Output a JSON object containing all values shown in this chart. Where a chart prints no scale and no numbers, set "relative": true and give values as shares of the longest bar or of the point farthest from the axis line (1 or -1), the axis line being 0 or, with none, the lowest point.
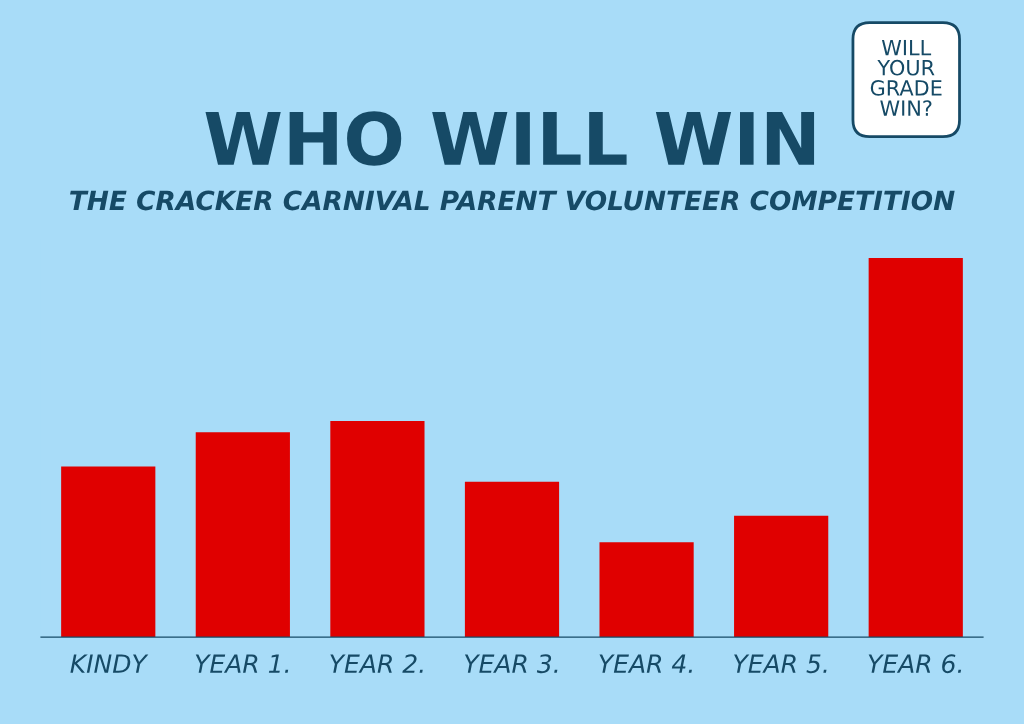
{
  "chart_data": {
    "type": "bar",
    "title": "WHO WILL WIN",
    "subtitle": "THE CRACKER CARNIVAL PARENT VOLUNTEER COMPETITION",
    "annotations": [
      "WILL\nYOUR\nGRADE\nWIN?"
    ],
    "categories": [
      "KINDY",
      "YEAR 1.",
      "YEAR 2.",
      "YEAR 3.",
      "YEAR 4.",
      "YEAR 5.",
      "YEAR 6."
    ],
    "values": [
      0.45,
      0.54,
      0.57,
      0.41,
      0.25,
      0.32,
      1
    ],
    "color": "#e00000",
    "relative": true,
    "grid": false,
    "legend": false
  }
}
